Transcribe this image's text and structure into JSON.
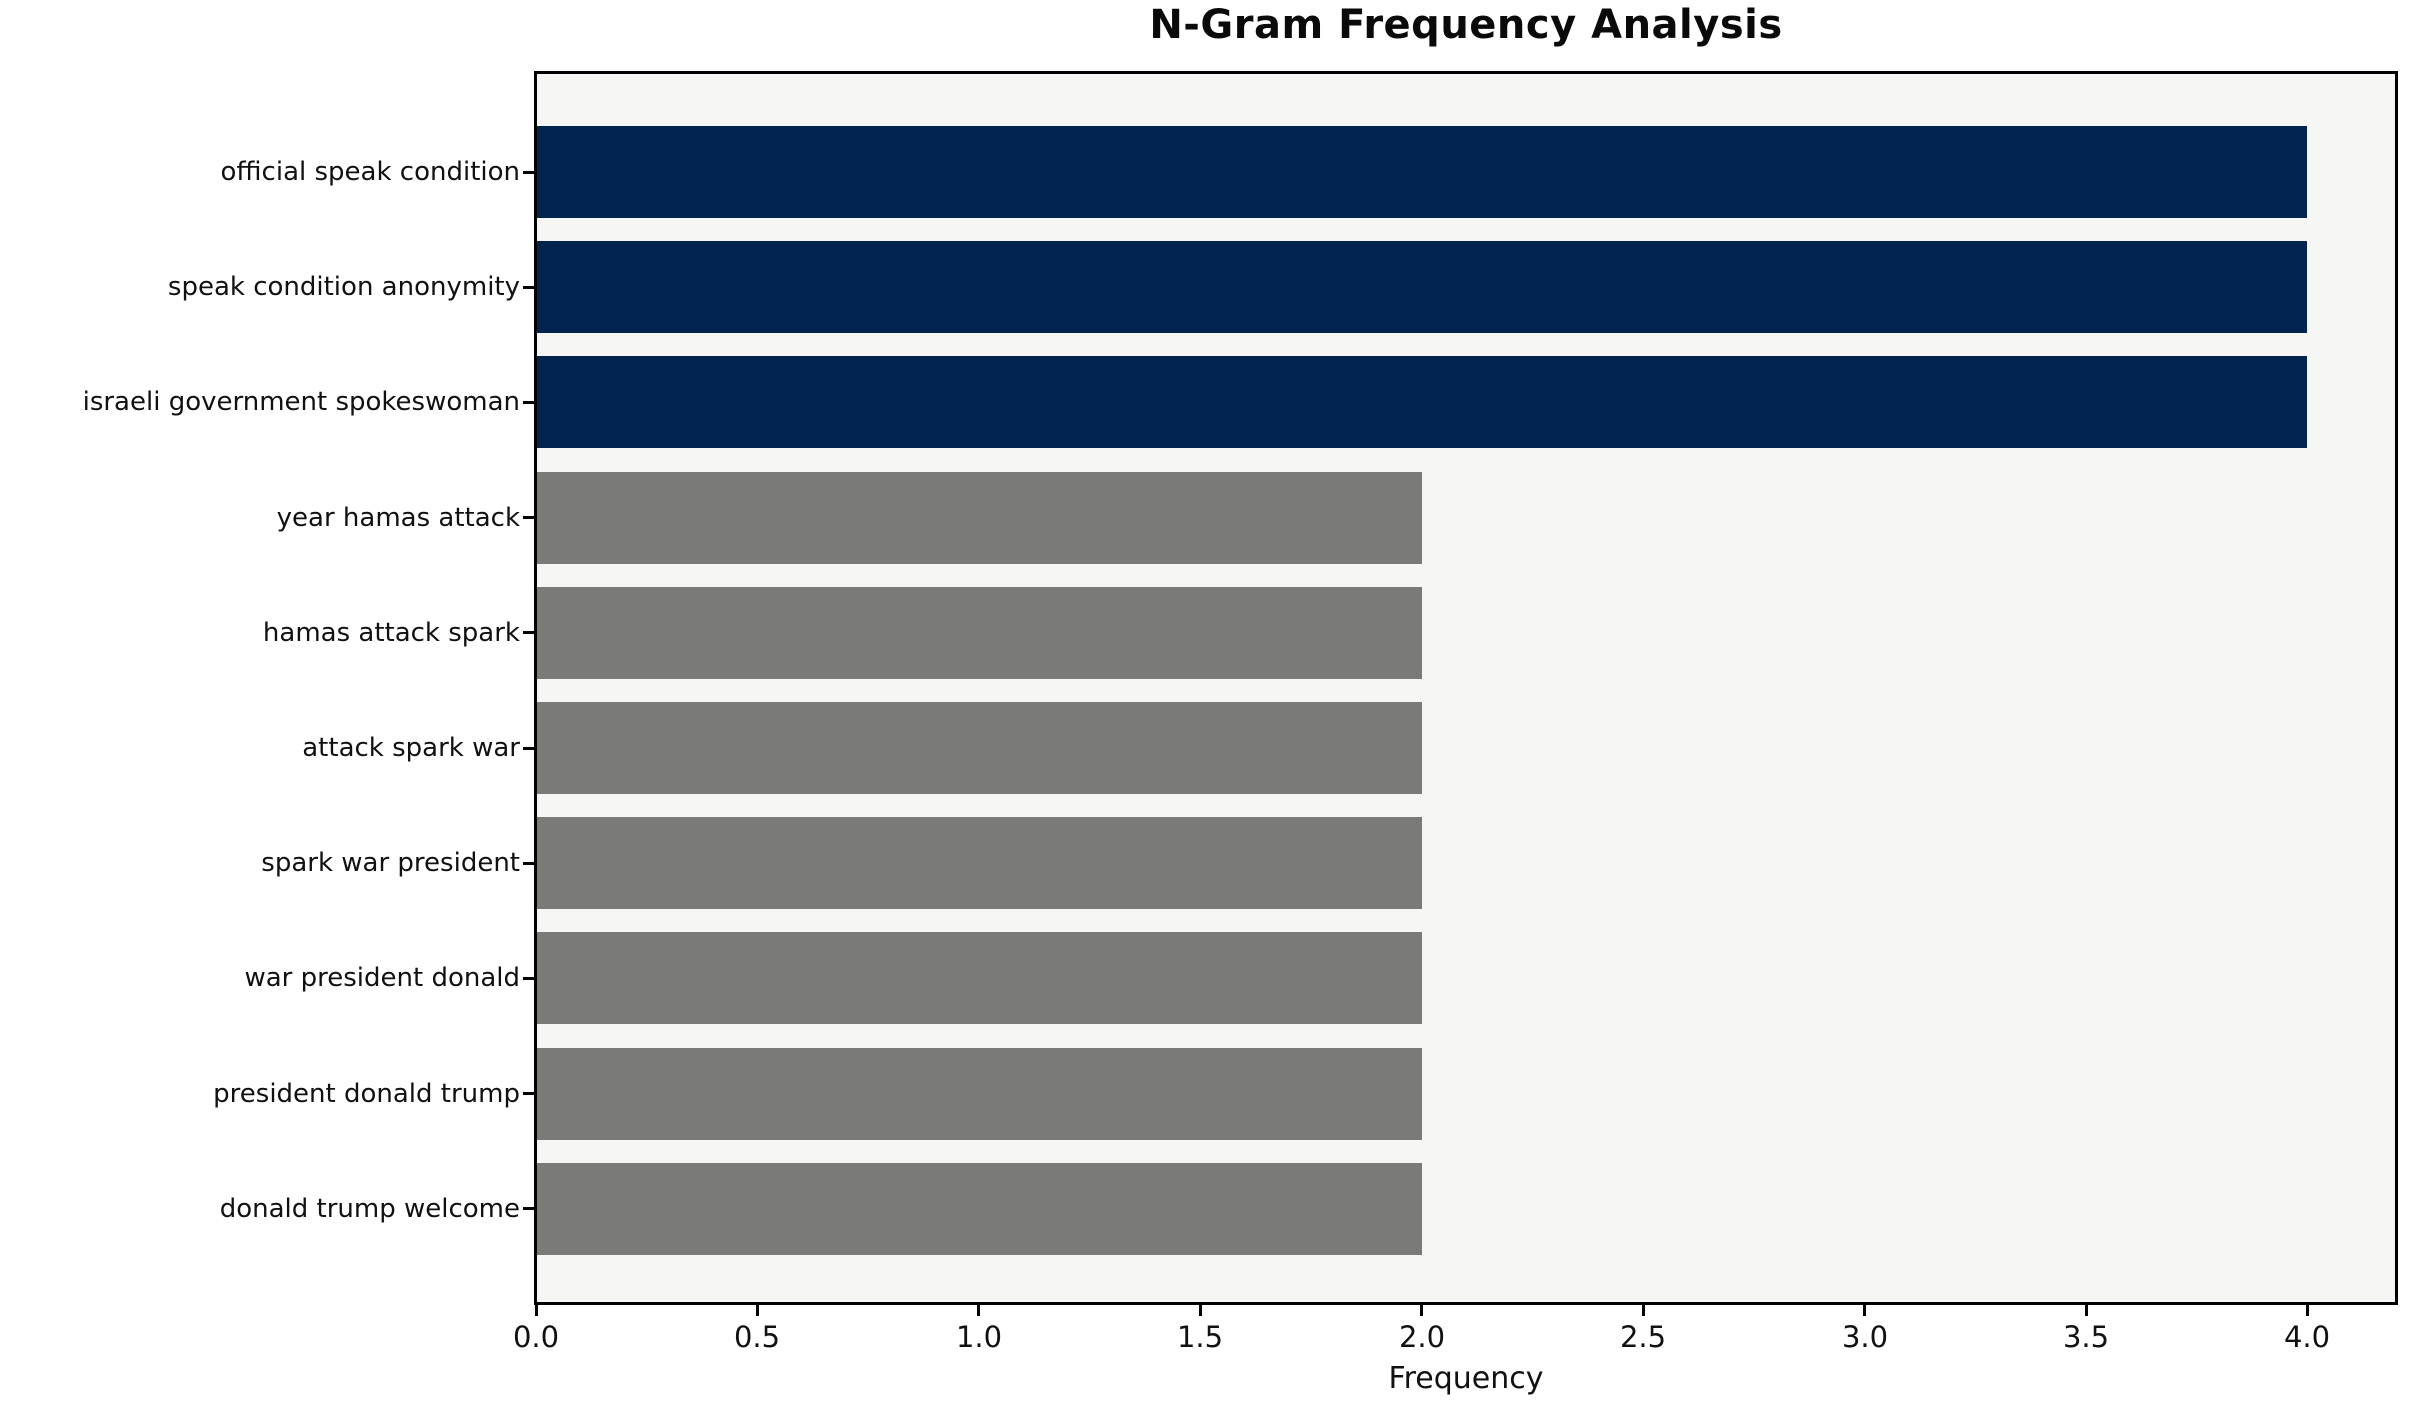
{
  "chart_data": {
    "type": "bar",
    "orientation": "horizontal",
    "title": "N-Gram Frequency Analysis",
    "xlabel": "Frequency",
    "ylabel": "",
    "categories": [
      "official speak condition",
      "speak condition anonymity",
      "israeli government spokeswoman",
      "year hamas attack",
      "hamas attack spark",
      "attack spark war",
      "spark war president",
      "war president donald",
      "president donald trump",
      "donald trump welcome"
    ],
    "values": [
      4,
      4,
      4,
      2,
      2,
      2,
      2,
      2,
      2,
      2
    ],
    "bar_colors": [
      "#02234e",
      "#02234e",
      "#02234e",
      "#7a7b77",
      "#7a7b77",
      "#7a7b77",
      "#7a7b77",
      "#7a7b77",
      "#7a7b77",
      "#7a7b77"
    ],
    "xlim": [
      0,
      4.2
    ],
    "x_ticks": [
      {
        "value": 0,
        "label": "0.0"
      },
      {
        "value": 0.5,
        "label": "0.5"
      },
      {
        "value": 1,
        "label": "1.0"
      },
      {
        "value": 1.5,
        "label": "1.5"
      },
      {
        "value": 2,
        "label": "2.0"
      },
      {
        "value": 2.5,
        "label": "2.5"
      },
      {
        "value": 3,
        "label": "3.0"
      },
      {
        "value": 3.5,
        "label": "3.5"
      },
      {
        "value": 4,
        "label": "4.0"
      }
    ],
    "grid": false,
    "legend": null,
    "colors": {
      "high_frequency_bar": "#02234e",
      "low_frequency_bar": "#7a7b77",
      "plot_background": "#f6f6f5",
      "figure_background": "#ffffff",
      "spine": "#000000"
    }
  }
}
